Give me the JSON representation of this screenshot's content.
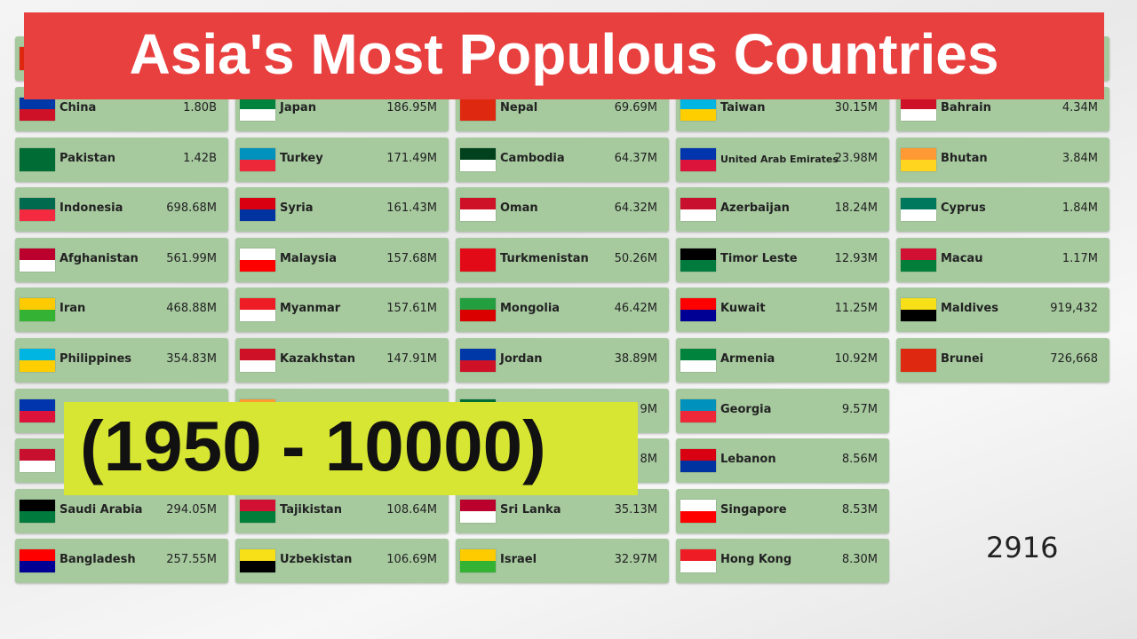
{
  "header": {
    "title": "Asia's Most Populous Countries"
  },
  "period_label": "(1950 - 10000)",
  "year": "2916",
  "columns": [
    {
      "cards": [
        {
          "name": "China",
          "value": "1.80B"
        },
        {
          "name": "Pakistan",
          "value": "1.42B"
        },
        {
          "name": "Indonesia",
          "value": "698.68M"
        },
        {
          "name": "Afghanistan",
          "value": "561.99M"
        },
        {
          "name": "Iran",
          "value": "468.88M"
        },
        {
          "name": "Philippines",
          "value": "354.83M"
        },
        {
          "name": "Saudi Arabia",
          "value": "294.05M"
        },
        {
          "name": "Bangladesh",
          "value": "257.55M"
        }
      ]
    },
    {
      "cards": [
        {
          "name": "Japan",
          "value": "186.95M"
        },
        {
          "name": "Turkey",
          "value": "171.49M"
        },
        {
          "name": "Syria",
          "value": "161.43M"
        },
        {
          "name": "Malaysia",
          "value": "157.68M"
        },
        {
          "name": "Myanmar",
          "value": "157.61M"
        },
        {
          "name": "Kazakhstan",
          "value": "147.91M"
        },
        {
          "name": "Tajikistan",
          "value": "108.64M"
        },
        {
          "name": "Uzbekistan",
          "value": "106.69M"
        }
      ]
    },
    {
      "cards": [
        {
          "name": "Nepal",
          "value": "69.69M"
        },
        {
          "name": "Cambodia",
          "value": "64.37M"
        },
        {
          "name": "Oman",
          "value": "64.32M"
        },
        {
          "name": "Turkmenistan",
          "value": "50.26M"
        },
        {
          "name": "Mongolia",
          "value": "46.42M"
        },
        {
          "name": "Jordan",
          "value": "38.89M"
        },
        {
          "name": "Sri Lanka",
          "value": "35.13M"
        },
        {
          "name": "Israel",
          "value": "32.97M"
        }
      ],
      "obscured_values": [
        "9M",
        "8M"
      ]
    },
    {
      "cards": [
        {
          "name": "Taiwan",
          "value": "30.15M"
        },
        {
          "name": "United Arab Emirates",
          "value": "23.98M"
        },
        {
          "name": "Azerbaijan",
          "value": "18.24M"
        },
        {
          "name": "Timor Leste",
          "value": "12.93M"
        },
        {
          "name": "Kuwait",
          "value": "11.25M"
        },
        {
          "name": "Armenia",
          "value": "10.92M"
        },
        {
          "name": "Georgia",
          "value": "9.57M"
        },
        {
          "name": "Lebanon",
          "value": "8.56M"
        },
        {
          "name": "Singapore",
          "value": "8.53M"
        },
        {
          "name": "Hong Kong",
          "value": "8.30M"
        }
      ]
    },
    {
      "cards": [
        {
          "name": "Bahrain",
          "value": "4.34M"
        },
        {
          "name": "Bhutan",
          "value": "3.84M"
        },
        {
          "name": "Cyprus",
          "value": "1.84M"
        },
        {
          "name": "Macau",
          "value": "1.17M"
        },
        {
          "name": "Maldives",
          "value": "919,432"
        },
        {
          "name": "Brunei",
          "value": "726,668"
        }
      ]
    }
  ]
}
